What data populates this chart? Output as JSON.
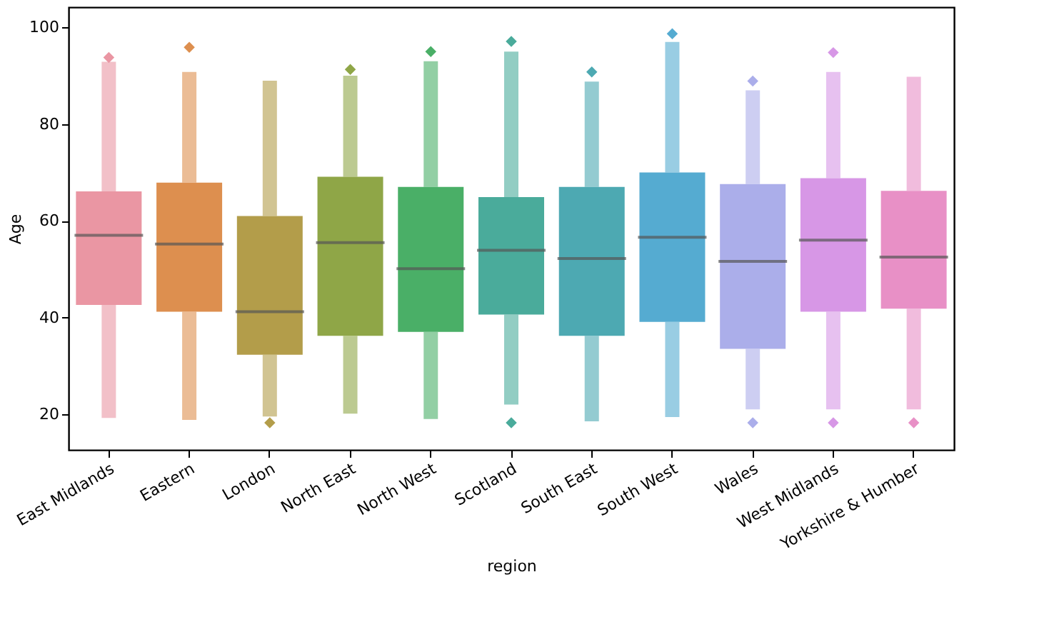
{
  "chart_data": {
    "type": "box",
    "xlabel": "region",
    "ylabel": "Age",
    "categories": [
      "East Midlands",
      "Eastern",
      "London",
      "North East",
      "North West",
      "Scotland",
      "South East",
      "South West",
      "Wales",
      "West Midlands",
      "Yorkshire & Humber"
    ],
    "colors": [
      "#ea96a3",
      "#dd8f4f",
      "#b39d4a",
      "#8fa647",
      "#4aaf67",
      "#4aab9b",
      "#4da9b2",
      "#55abd1",
      "#abaeea",
      "#d797e6",
      "#e890c6"
    ],
    "boxes": [
      {
        "low": 19.2,
        "q1": 42.6,
        "median": 57.0,
        "q3": 66.1,
        "high": 92.9,
        "outliers": [
          93.8
        ]
      },
      {
        "low": 18.8,
        "q1": 41.2,
        "median": 55.2,
        "q3": 67.9,
        "high": 90.8,
        "outliers": [
          95.9
        ]
      },
      {
        "low": 19.5,
        "q1": 32.3,
        "median": 41.2,
        "q3": 61.0,
        "high": 89.0,
        "outliers": [
          18.2
        ]
      },
      {
        "low": 20.1,
        "q1": 36.2,
        "median": 55.5,
        "q3": 69.1,
        "high": 90.0,
        "outliers": [
          91.3
        ]
      },
      {
        "low": 19.0,
        "q1": 37.0,
        "median": 50.1,
        "q3": 67.0,
        "high": 93.0,
        "outliers": [
          95.0
        ]
      },
      {
        "low": 22.0,
        "q1": 40.6,
        "median": 53.9,
        "q3": 64.9,
        "high": 95.0,
        "outliers": [
          18.2,
          97.1
        ]
      },
      {
        "low": 18.5,
        "q1": 36.2,
        "median": 52.2,
        "q3": 67.0,
        "high": 88.8,
        "outliers": [
          90.8
        ]
      },
      {
        "low": 19.4,
        "q1": 39.1,
        "median": 56.6,
        "q3": 70.0,
        "high": 97.0,
        "outliers": [
          98.7
        ]
      },
      {
        "low": 21.0,
        "q1": 33.5,
        "median": 51.6,
        "q3": 67.6,
        "high": 87.0,
        "outliers": [
          18.2,
          88.9
        ]
      },
      {
        "low": 21.0,
        "q1": 41.2,
        "median": 56.0,
        "q3": 68.8,
        "high": 90.8,
        "outliers": [
          18.2,
          94.8
        ]
      },
      {
        "low": 21.0,
        "q1": 41.8,
        "median": 52.5,
        "q3": 66.2,
        "high": 89.8,
        "outliers": [
          18.2
        ]
      }
    ],
    "ylim": [
      12.6,
      104.2
    ],
    "yticks": [
      20,
      40,
      60,
      80,
      100
    ],
    "grid": false
  }
}
